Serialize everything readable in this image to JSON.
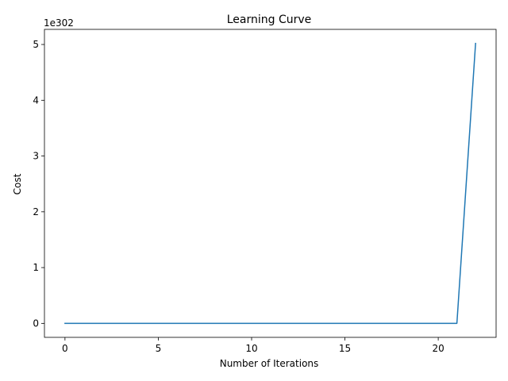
{
  "chart_data": {
    "type": "line",
    "title": "Learning Curve",
    "xlabel": "Number of Iterations",
    "ylabel": "Cost",
    "y_offset_label": "1e302",
    "y_scale_note": "values in units of 1e302",
    "xlim": [
      -1.1,
      23.1
    ],
    "ylim": [
      -0.251,
      5.271
    ],
    "x_ticks": [
      0,
      5,
      10,
      15,
      20
    ],
    "y_ticks": [
      0,
      1,
      2,
      3,
      4,
      5
    ],
    "grid": false,
    "series": [
      {
        "color": "#1f77b4",
        "x": [
          0,
          1,
          2,
          3,
          4,
          5,
          6,
          7,
          8,
          9,
          10,
          11,
          12,
          13,
          14,
          15,
          16,
          17,
          18,
          19,
          20,
          21,
          22
        ],
        "values": [
          0,
          0,
          0,
          0,
          0,
          0,
          0,
          0,
          0,
          0,
          0,
          0,
          0,
          0,
          0,
          0,
          0,
          0,
          0,
          0,
          0,
          0,
          5.02
        ]
      }
    ]
  }
}
